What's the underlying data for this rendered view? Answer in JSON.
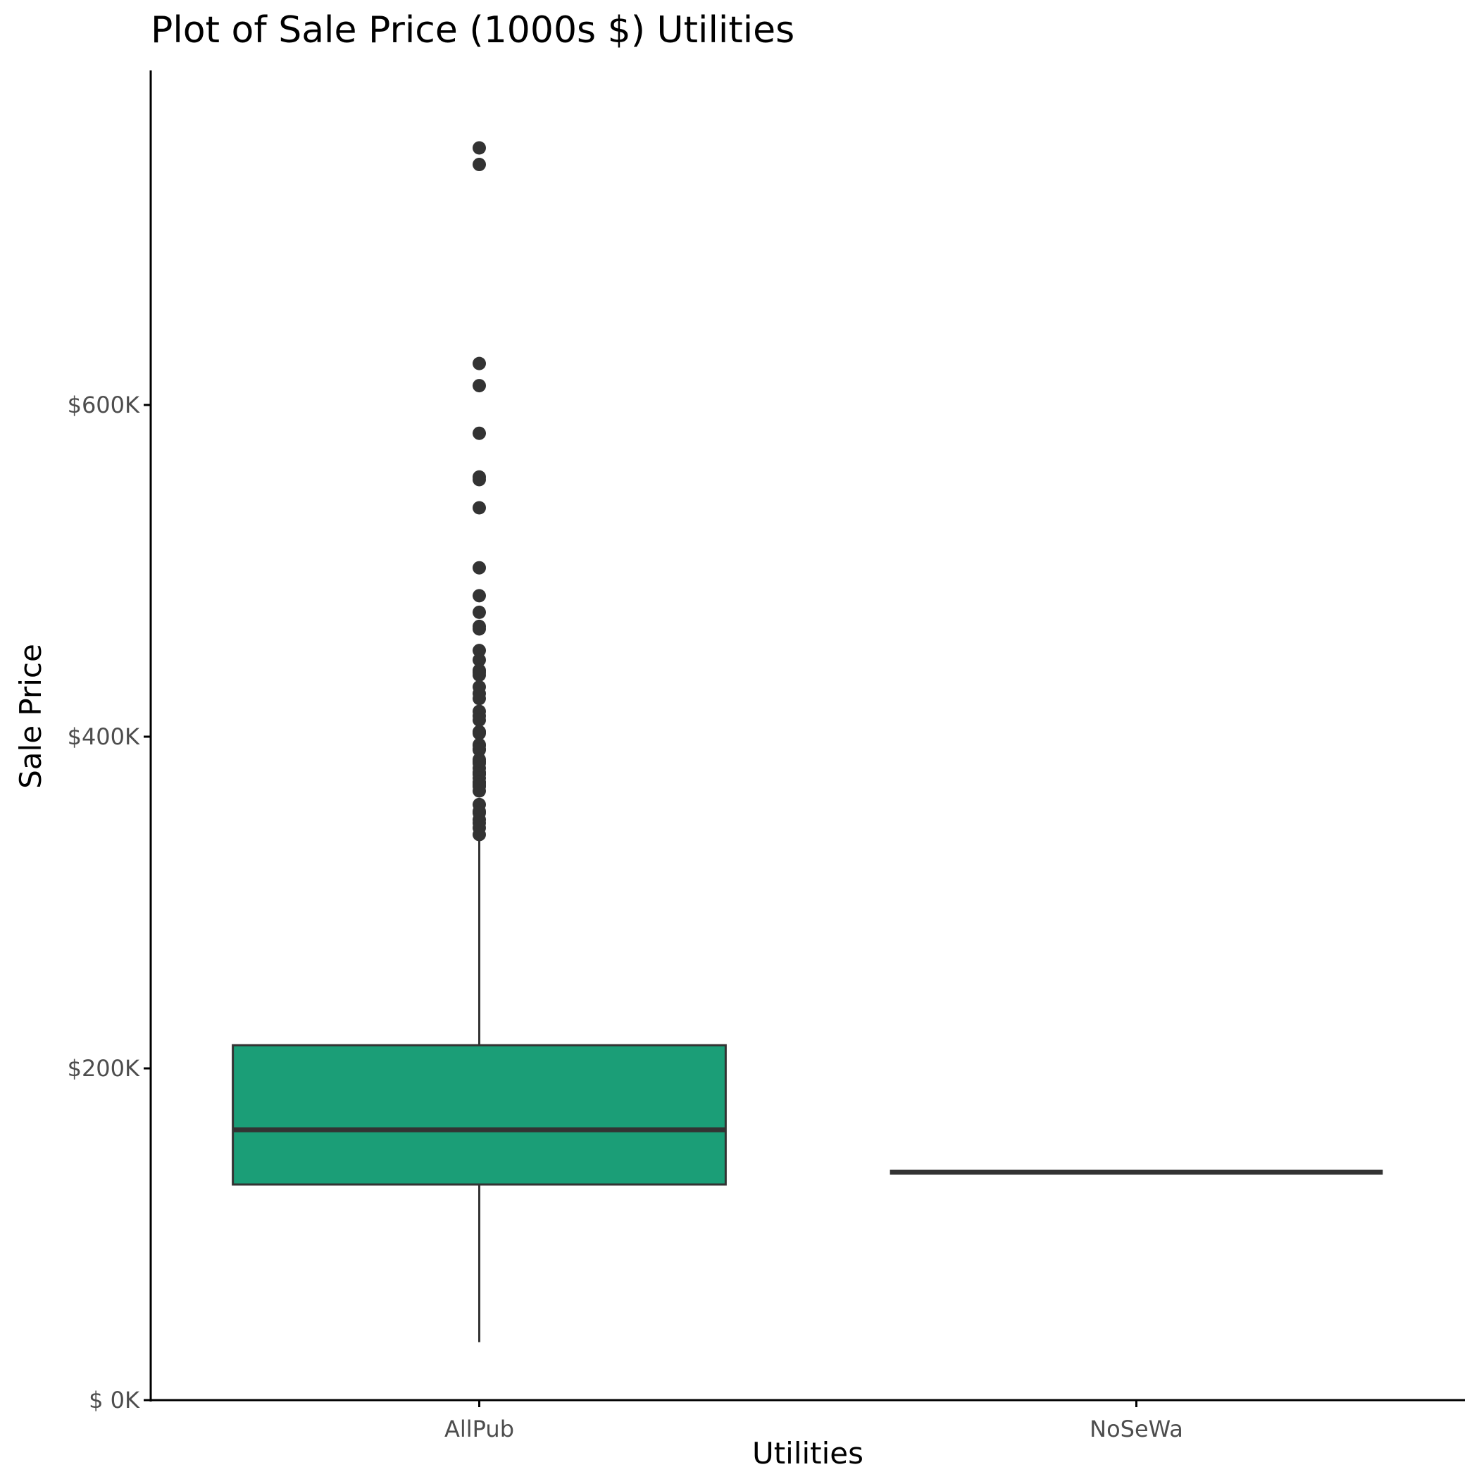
{
  "chart_data": {
    "type": "boxplot",
    "title": "Plot of Sale Price (1000s $) Utilities",
    "xlabel": "Utilities",
    "ylabel": "Sale Price",
    "categories": [
      "AllPub",
      "NoSeWa"
    ],
    "ylim": [
      0,
      755000
    ],
    "yticks": [
      0,
      200000,
      400000,
      600000
    ],
    "ytick_labels": [
      "$  0K",
      "$200K",
      "$400K",
      "$600K"
    ],
    "grid": false,
    "legend": "none",
    "fill_color": "#1b9e77",
    "line_color": "#333333",
    "boxes": [
      {
        "category": "AllPub",
        "whisker_low": 34900,
        "q1": 129975,
        "median": 163000,
        "q3": 214000,
        "whisker_high": 340000,
        "outliers": [
          745000,
          755000,
          625000,
          611657,
          582933,
          556581,
          555000,
          538000,
          501837,
          485000,
          475000,
          466500,
          465000,
          451950,
          446261,
          440000,
          438780,
          437154,
          430000,
          426000,
          423000,
          415298,
          412500,
          410000,
          403000,
          402861,
          402000,
          395192,
          394617,
          392500,
          392000,
          386250,
          385000,
          383970,
          381000,
          378500,
          377500,
          377426,
          375000,
          372500,
          372402,
          370878,
          369900,
          367294,
          359100,
          355000,
          354000,
          350000,
          348000,
          345000,
          341000
        ]
      },
      {
        "category": "NoSeWa",
        "whisker_low": 137500,
        "q1": 137500,
        "median": 137500,
        "q3": 137500,
        "whisker_high": 137500,
        "outliers": []
      }
    ]
  }
}
